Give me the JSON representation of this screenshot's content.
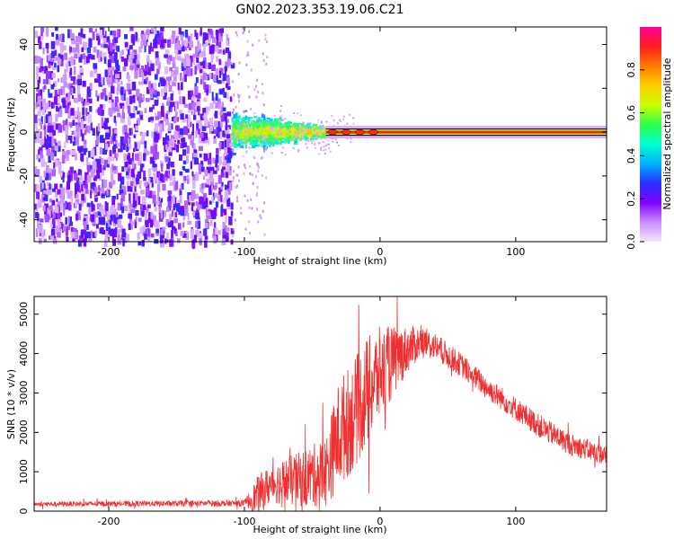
{
  "title": "GN02.2023.353.19.06.C21",
  "chart_data": [
    {
      "type": "heatmap",
      "xlabel": "Height of straight line (km)",
      "ylabel": "Frequency (Hz)",
      "xlim": [
        -255,
        167
      ],
      "ylim": [
        -50,
        48
      ],
      "x_ticks": [
        -200,
        -100,
        0,
        100
      ],
      "y_ticks": [
        -40,
        -20,
        0,
        20,
        40
      ],
      "colorbar": {
        "label": "Normalized spectral amplitude",
        "range": [
          0,
          1
        ],
        "ticks": [
          0.0,
          0.2,
          0.4,
          0.6,
          0.8
        ],
        "colors": [
          "#f4e6ff",
          "#c98cff",
          "#8000ff",
          "#2a30ff",
          "#00b4ff",
          "#00ffd0",
          "#2dff4a",
          "#c8ff00",
          "#ffd000",
          "#ff7a00",
          "#ff1e1e",
          "#ff0099"
        ]
      },
      "regions": [
        {
          "name": "broadband noise",
          "x": [
            -255,
            -110
          ],
          "freq": [
            -50,
            48
          ],
          "level": 0.25
        },
        {
          "name": "transition",
          "x": [
            -110,
            -40
          ],
          "freq_halfwidth": [
            8,
            2
          ],
          "level": 0.4
        },
        {
          "name": "carrier line",
          "x": [
            -40,
            167
          ],
          "freq": 0,
          "level": 0.95
        }
      ]
    },
    {
      "type": "line",
      "xlabel": "Height of straight line (km)",
      "ylabel": "SNR (10 * v/v)",
      "xlim": [
        -255,
        167
      ],
      "ylim": [
        0,
        5450
      ],
      "x_ticks": [
        -200,
        -100,
        0,
        100
      ],
      "y_ticks": [
        0,
        1000,
        2000,
        3000,
        4000,
        5000
      ],
      "series": [
        {
          "color": "#f03030",
          "envelope": {
            "x": [
              -255,
              -100,
              -90,
              -80,
              -60,
              -40,
              -30,
              -20,
              -10,
              0,
              10,
              20,
              30,
              40,
              60,
              80,
              100,
              120,
              140,
              167
            ],
            "mean": [
              180,
              200,
              400,
              700,
              800,
              1000,
              2000,
              2400,
              3000,
              3500,
              3800,
              4100,
              4300,
              4200,
              3700,
              3100,
              2600,
              2100,
              1700,
              1400
            ],
            "spread": [
              60,
              80,
              500,
              500,
              700,
              900,
              1400,
              1400,
              1400,
              1200,
              900,
              600,
              400,
              350,
              300,
              300,
              300,
              300,
              280,
              250
            ]
          }
        }
      ]
    }
  ]
}
